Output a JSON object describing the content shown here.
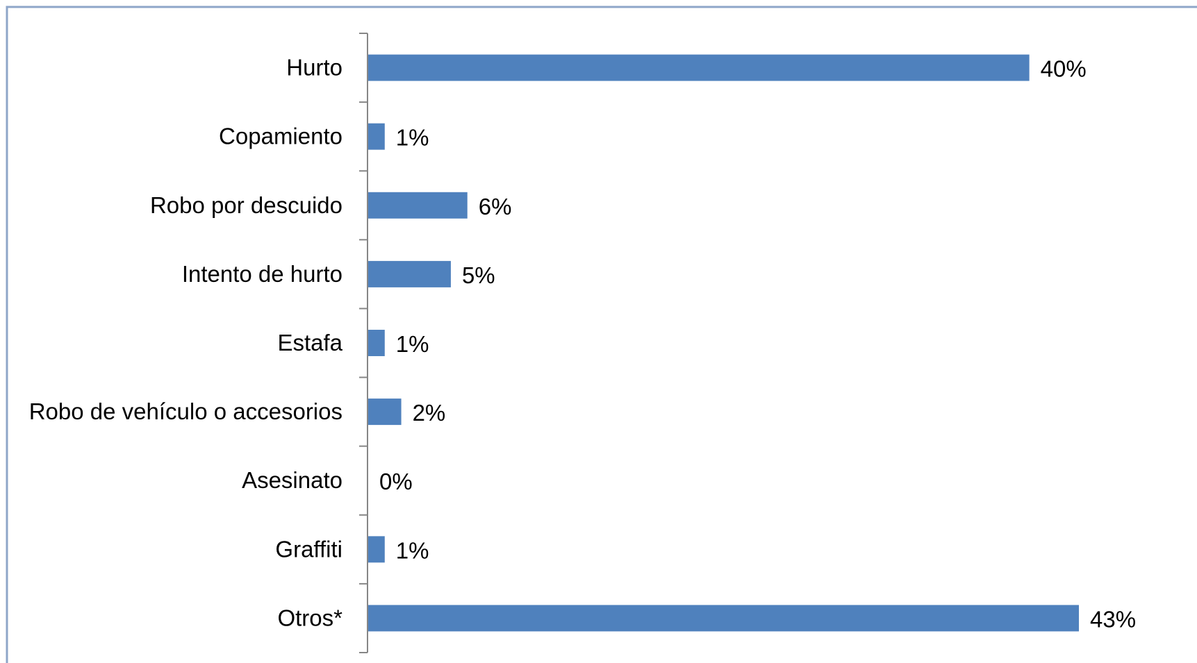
{
  "chart_data": {
    "type": "bar",
    "orientation": "horizontal",
    "categories": [
      "Hurto",
      "Copamiento",
      "Robo por descuido",
      "Intento de hurto",
      "Estafa",
      "Robo de vehículo o accesorios",
      "Asesinato",
      "Graffiti",
      "Otros*"
    ],
    "values": [
      40,
      1,
      6,
      5,
      1,
      2,
      0,
      1,
      43
    ],
    "value_labels": [
      "40%",
      "1%",
      "6%",
      "5%",
      "1%",
      "2%",
      "0%",
      "1%",
      "43%"
    ],
    "title": "",
    "xlabel": "",
    "ylabel": "",
    "xlim": [
      0,
      50
    ],
    "grid": false,
    "legend": "none",
    "bar_color": "#4F81BD",
    "frame_color": "#8EA6C8"
  }
}
